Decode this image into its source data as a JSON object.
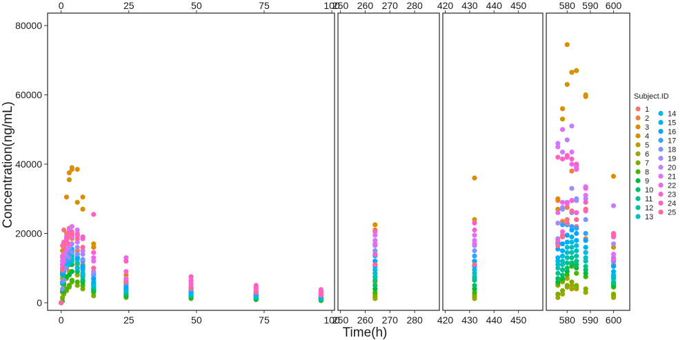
{
  "chart_data": {
    "type": "scatter",
    "xlabel": "Time(h)",
    "ylabel": "Concentration(ng/mL)",
    "ylim": [
      0,
      82000
    ],
    "y_ticks": [
      "0",
      "20000",
      "40000",
      "60000",
      "80000"
    ],
    "y_tick_values": [
      0,
      20000,
      40000,
      60000,
      80000
    ],
    "grid": false,
    "legend": {
      "title": "Subject.ID",
      "placement": "right",
      "entries": [
        "1",
        "2",
        "3",
        "4",
        "5",
        "6",
        "7",
        "8",
        "9",
        "10",
        "11",
        "12",
        "13",
        "14",
        "15",
        "16",
        "17",
        "18",
        "19",
        "20",
        "21",
        "22",
        "23",
        "24",
        "25"
      ],
      "colors": [
        "#F8766D",
        "#EE8044",
        "#E18A00",
        "#CF9400",
        "#B89E00",
        "#9DA700",
        "#7CAE00",
        "#49B500",
        "#00BA38",
        "#00BE67",
        "#00C08B",
        "#00C1A9",
        "#00BFC4",
        "#00BAE0",
        "#00B0F6",
        "#00A5FF",
        "#35A2FF",
        "#7997FF",
        "#A58AFF",
        "#C77CFF",
        "#DF70F8",
        "#F066EA",
        "#FC61D5",
        "#FF61C3",
        "#FF6A98"
      ]
    },
    "panels": [
      {
        "xlim": [
          -5,
          101
        ],
        "x_ticks": [
          "0",
          "25",
          "50",
          "75",
          "100"
        ],
        "x_tick_values": [
          0,
          25,
          50,
          75,
          100
        ],
        "times": [
          0,
          0.5,
          1,
          2,
          3,
          4,
          6,
          8,
          12,
          24,
          48,
          72,
          96
        ],
        "peak_times": [
          0.5,
          1,
          2,
          3,
          4,
          6,
          8,
          12
        ],
        "peak_values": [
          36000,
          39500,
          16500,
          24000,
          31500,
          18000,
          13000,
          9000,
          29000,
          12500,
          7200,
          5300
        ],
        "values": [
          [
            0,
            16500,
            21000,
            20000,
            20500,
            19000,
            15000,
            12000,
            7000,
            4000,
            3000,
            2200,
            1500
          ],
          [
            0,
            11000,
            17500,
            18000,
            21500,
            18500,
            15000,
            11000,
            6000,
            3500,
            2500,
            1800,
            1200
          ],
          [
            0,
            15000,
            13000,
            30500,
            37500,
            38500,
            38500,
            30500,
            16000,
            8000,
            7500,
            4300,
            2000
          ],
          [
            0,
            12000,
            16000,
            18500,
            35500,
            39000,
            29000,
            27000,
            17000,
            7000,
            6300,
            3300,
            2700
          ],
          [
            0,
            7000,
            10000,
            11000,
            9000,
            11000,
            11000,
            8000,
            5000,
            4000,
            2800,
            2000,
            1500
          ],
          [
            0,
            3000,
            5000,
            7000,
            8000,
            9000,
            8000,
            6000,
            4000,
            2500,
            1800,
            1300,
            900
          ],
          [
            0,
            1500,
            2500,
            3500,
            4500,
            6000,
            5000,
            4000,
            2000,
            1500,
            1200,
            900,
            600
          ],
          [
            0,
            500,
            3000,
            4000,
            5000,
            6500,
            6000,
            5000,
            3000,
            2000,
            1500,
            1000,
            700
          ],
          [
            0,
            3500,
            5500,
            7500,
            8000,
            9000,
            9000,
            6000,
            3500,
            2000,
            1500,
            1000,
            800
          ],
          [
            0,
            5500,
            8000,
            10500,
            11000,
            11000,
            9000,
            6500,
            3800,
            2500,
            1800,
            1200,
            900
          ],
          [
            0,
            8000,
            11000,
            11500,
            12000,
            12500,
            10000,
            7500,
            4500,
            3000,
            2200,
            1600,
            1100
          ],
          [
            0,
            9000,
            11500,
            12000,
            13000,
            13500,
            11500,
            8500,
            5000,
            3500,
            2500,
            1800,
            1300
          ],
          [
            0,
            10000,
            12000,
            13000,
            14000,
            14500,
            12500,
            9500,
            5500,
            4000,
            3000,
            2200,
            1600
          ],
          [
            0,
            9500,
            10000,
            10500,
            11500,
            12000,
            10000,
            8000,
            5000,
            3500,
            2500,
            1800,
            1300
          ],
          [
            0,
            11000,
            12500,
            13500,
            14500,
            15500,
            13000,
            10000,
            6000,
            4500,
            3200,
            2300,
            1600
          ],
          [
            0,
            8500,
            12000,
            13500,
            14000,
            14500,
            13000,
            10500,
            7000,
            5000,
            3500,
            2500,
            1800
          ],
          [
            0,
            6000,
            9000,
            12000,
            14500,
            15000,
            14000,
            12000,
            8000,
            5500,
            3800,
            2800,
            2000
          ],
          [
            0,
            4000,
            6500,
            10000,
            13000,
            14500,
            14000,
            12500,
            8500,
            6000,
            4000,
            3000,
            2100
          ],
          [
            0,
            11000,
            13000,
            13500,
            16000,
            17000,
            16000,
            14000,
            9000,
            6000,
            4200,
            3000,
            2200
          ],
          [
            0,
            12000,
            14000,
            15500,
            16500,
            19000,
            17500,
            15000,
            10000,
            6500,
            4500,
            3200,
            2300
          ],
          [
            0,
            13000,
            16000,
            19000,
            21000,
            22000,
            21000,
            18500,
            12000,
            7000,
            5000,
            3500,
            2500
          ],
          [
            0,
            11000,
            12000,
            15000,
            17000,
            19500,
            19500,
            18500,
            13000,
            13000,
            5500,
            3800,
            2800
          ],
          [
            0,
            13500,
            17500,
            19000,
            19500,
            20000,
            20000,
            19000,
            14500,
            9000,
            6500,
            4500,
            3200
          ],
          [
            0,
            10000,
            17000,
            18000,
            20000,
            20500,
            19500,
            19000,
            25500,
            12000,
            7500,
            5000,
            3800
          ],
          [
            0,
            9500,
            16000,
            17000,
            19000,
            20000,
            18500,
            16000,
            10000,
            6000,
            4200,
            3000,
            2200
          ]
        ]
      },
      {
        "xlim": [
          249,
          290
        ],
        "x_ticks": [
          "250",
          "260",
          "270",
          "280"
        ],
        "x_tick_values": [
          250,
          260,
          270,
          280
        ],
        "times": [
          264
        ],
        "values": [
          [
            1500
          ],
          [
            2500
          ],
          [
            22500
          ],
          [
            21000
          ],
          [
            6000
          ],
          [
            1200
          ],
          [
            2000
          ],
          [
            3000
          ],
          [
            4000
          ],
          [
            5000
          ],
          [
            6500
          ],
          [
            7500
          ],
          [
            8500
          ],
          [
            9500
          ],
          [
            10500
          ],
          [
            12000
          ],
          [
            13500
          ],
          [
            15000
          ],
          [
            16500
          ],
          [
            18000
          ],
          [
            19500
          ],
          [
            17000
          ],
          [
            20500
          ],
          [
            14000
          ],
          [
            11000
          ]
        ]
      },
      {
        "xlim": [
          419,
          460
        ],
        "x_ticks": [
          "420",
          "430",
          "440",
          "450"
        ],
        "x_tick_values": [
          420,
          430,
          440,
          450
        ],
        "times": [
          432
        ],
        "values": [
          [
            1500
          ],
          [
            2500
          ],
          [
            36000
          ],
          [
            24000
          ],
          [
            7000
          ],
          [
            1200
          ],
          [
            2000
          ],
          [
            3000
          ],
          [
            4000
          ],
          [
            5000
          ],
          [
            6500
          ],
          [
            7500
          ],
          [
            8500
          ],
          [
            9500
          ],
          [
            10500
          ],
          [
            12000
          ],
          [
            13500
          ],
          [
            15000
          ],
          [
            16500
          ],
          [
            18000
          ],
          [
            19500
          ],
          [
            17000
          ],
          [
            21000
          ],
          [
            23000
          ],
          [
            11000
          ]
        ]
      },
      {
        "xlim": [
          571,
          607
        ],
        "x_ticks": [
          "580",
          "590",
          "600"
        ],
        "x_tick_values": [
          580,
          590,
          600
        ],
        "times": [
          576,
          578,
          580,
          582,
          584,
          588,
          600
        ],
        "values": [
          [
            17000,
            19500,
            24000,
            29500,
            22000,
            18000,
            11000
          ],
          [
            29500,
            23500,
            27500,
            38000,
            26000,
            18500,
            12000
          ],
          [
            30000,
            56000,
            74500,
            66500,
            67000,
            59500,
            36500
          ],
          [
            27000,
            53000,
            63000,
            66500,
            67000,
            60000,
            16000
          ],
          [
            5000,
            6000,
            7000,
            5000,
            4000,
            3000,
            2000
          ],
          [
            1500,
            2500,
            4500,
            4000,
            4500,
            3000,
            1500
          ],
          [
            2500,
            3500,
            5000,
            6000,
            5000,
            4000,
            2500
          ],
          [
            5500,
            6500,
            8000,
            10500,
            8500,
            7500,
            4500
          ],
          [
            6000,
            7000,
            9000,
            11000,
            10000,
            8500,
            5000
          ],
          [
            7000,
            8000,
            10000,
            11500,
            11000,
            9500,
            5500
          ],
          [
            8500,
            9500,
            11500,
            13000,
            12000,
            10500,
            6000
          ],
          [
            10000,
            11000,
            13000,
            14500,
            13500,
            12000,
            7000
          ],
          [
            11000,
            12000,
            14500,
            16000,
            15000,
            13000,
            7500
          ],
          [
            12000,
            13500,
            16000,
            17500,
            16500,
            14500,
            8000
          ],
          [
            13000,
            15000,
            17500,
            19000,
            18000,
            16000,
            9000
          ],
          [
            15500,
            17000,
            19500,
            21000,
            20000,
            18000,
            10500
          ],
          [
            17500,
            22500,
            22500,
            22000,
            21500,
            20000,
            12000
          ],
          [
            18500,
            27000,
            23000,
            26000,
            30000,
            24000,
            13000
          ],
          [
            23000,
            27500,
            29000,
            33000,
            29500,
            30000,
            17000
          ],
          [
            46000,
            43500,
            47000,
            51000,
            39000,
            33500,
            28000
          ],
          [
            45000,
            50000,
            42000,
            43500,
            39500,
            31000,
            14000
          ],
          [
            26000,
            29000,
            42000,
            40000,
            38500,
            33000,
            19000
          ],
          [
            18000,
            20500,
            28500,
            29500,
            26000,
            26500,
            12500
          ],
          [
            42000,
            41500,
            42500,
            41500,
            40000,
            29000,
            20000
          ],
          [
            16500,
            19000,
            23000,
            26500,
            24000,
            27000,
            19500
          ]
        ]
      }
    ]
  }
}
